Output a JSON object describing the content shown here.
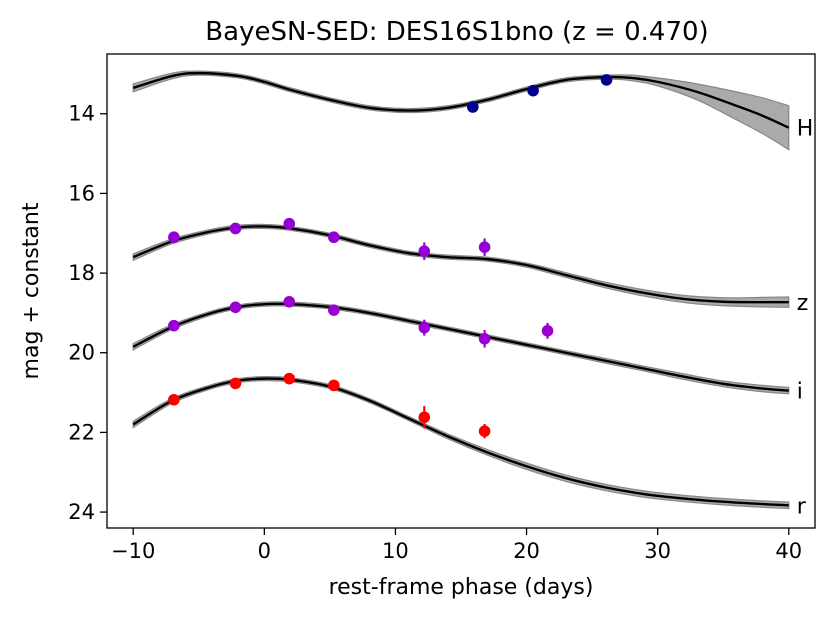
{
  "chart_data": {
    "type": "line",
    "title": "BayeSN-SED: DES16S1bno (z = 0.470)",
    "xlabel": "rest-frame phase (days)",
    "ylabel": "mag + constant",
    "xlim": [
      -12,
      42
    ],
    "ylim": [
      24.4,
      12.5
    ],
    "y_inverted": true,
    "xticks": [
      -10,
      0,
      10,
      20,
      30,
      40
    ],
    "xtick_labels": [
      "−10",
      "0",
      "10",
      "20",
      "30",
      "40"
    ],
    "yticks": [
      14,
      16,
      18,
      20,
      22,
      24
    ],
    "ytick_labels": [
      "14",
      "16",
      "18",
      "20",
      "22",
      "24"
    ],
    "grid": false,
    "colors": {
      "model": "#000000",
      "band_fill": "#aaaaaa",
      "band_edge": "#888888"
    },
    "series": [
      {
        "name": "H",
        "color": "#00008b",
        "model_x": [
          -10,
          -7,
          -5,
          -2,
          0,
          2,
          5,
          8,
          11,
          14,
          17,
          20,
          23,
          26,
          28,
          30,
          33,
          36,
          38,
          40
        ],
        "model_y": [
          13.35,
          13.05,
          12.98,
          13.05,
          13.2,
          13.4,
          13.65,
          13.85,
          13.92,
          13.85,
          13.65,
          13.38,
          13.15,
          13.08,
          13.1,
          13.2,
          13.45,
          13.8,
          14.05,
          14.35
        ],
        "model_err": [
          0.1,
          0.07,
          0.05,
          0.05,
          0.05,
          0.05,
          0.05,
          0.05,
          0.05,
          0.05,
          0.05,
          0.05,
          0.05,
          0.05,
          0.07,
          0.1,
          0.2,
          0.35,
          0.45,
          0.55
        ],
        "points": [
          {
            "x": 15.9,
            "y": 13.83,
            "err": 0.05
          },
          {
            "x": 20.5,
            "y": 13.42,
            "err": 0.05
          },
          {
            "x": 26.1,
            "y": 13.15,
            "err": 0.05
          }
        ]
      },
      {
        "name": "z",
        "color": "#9400d3",
        "model_x": [
          -10,
          -7,
          -4,
          -2,
          0,
          2,
          5,
          8,
          11,
          14,
          17,
          20,
          23,
          26,
          29,
          32,
          35,
          38,
          40
        ],
        "model_y": [
          17.6,
          17.2,
          16.95,
          16.85,
          16.83,
          16.88,
          17.05,
          17.3,
          17.5,
          17.6,
          17.65,
          17.8,
          18.05,
          18.3,
          18.5,
          18.65,
          18.72,
          18.73,
          18.73
        ],
        "model_err": [
          0.08,
          0.06,
          0.05,
          0.05,
          0.05,
          0.05,
          0.05,
          0.05,
          0.05,
          0.05,
          0.05,
          0.05,
          0.06,
          0.07,
          0.08,
          0.09,
          0.1,
          0.12,
          0.13
        ],
        "points": [
          {
            "x": -6.9,
            "y": 17.1,
            "err": 0.1
          },
          {
            "x": -2.2,
            "y": 16.88,
            "err": 0.1
          },
          {
            "x": 1.9,
            "y": 16.76,
            "err": 0.1
          },
          {
            "x": 5.3,
            "y": 17.1,
            "err": 0.1
          },
          {
            "x": 12.2,
            "y": 17.45,
            "err": 0.22
          },
          {
            "x": 16.8,
            "y": 17.35,
            "err": 0.22
          }
        ]
      },
      {
        "name": "i",
        "color": "#9b00d3",
        "model_x": [
          -10,
          -7,
          -4,
          -2,
          0,
          2,
          5,
          8,
          11,
          14,
          17,
          20,
          23,
          26,
          29,
          32,
          35,
          38,
          40
        ],
        "model_y": [
          19.85,
          19.35,
          19.0,
          18.85,
          18.78,
          18.78,
          18.85,
          19.0,
          19.2,
          19.4,
          19.6,
          19.8,
          20.0,
          20.2,
          20.4,
          20.6,
          20.78,
          20.9,
          20.95
        ],
        "model_err": [
          0.08,
          0.06,
          0.05,
          0.05,
          0.05,
          0.05,
          0.05,
          0.05,
          0.05,
          0.05,
          0.05,
          0.05,
          0.05,
          0.06,
          0.06,
          0.07,
          0.07,
          0.08,
          0.08
        ],
        "points": [
          {
            "x": -6.9,
            "y": 19.32,
            "err": 0.1
          },
          {
            "x": -2.2,
            "y": 18.86,
            "err": 0.1
          },
          {
            "x": 1.9,
            "y": 18.72,
            "err": 0.1
          },
          {
            "x": 5.3,
            "y": 18.93,
            "err": 0.1
          },
          {
            "x": 12.2,
            "y": 19.37,
            "err": 0.2
          },
          {
            "x": 16.8,
            "y": 19.65,
            "err": 0.22
          },
          {
            "x": 21.6,
            "y": 19.45,
            "err": 0.2
          }
        ]
      },
      {
        "name": "r",
        "color": "#ff0000",
        "model_x": [
          -10,
          -7,
          -4,
          -2,
          0,
          2,
          5,
          8,
          11,
          14,
          17,
          20,
          23,
          26,
          29,
          32,
          35,
          38,
          40
        ],
        "model_y": [
          21.8,
          21.2,
          20.85,
          20.7,
          20.65,
          20.68,
          20.85,
          21.2,
          21.65,
          22.1,
          22.5,
          22.85,
          23.15,
          23.38,
          23.55,
          23.66,
          23.74,
          23.8,
          23.83
        ],
        "model_err": [
          0.08,
          0.06,
          0.05,
          0.05,
          0.05,
          0.05,
          0.05,
          0.05,
          0.05,
          0.06,
          0.07,
          0.08,
          0.08,
          0.08,
          0.08,
          0.08,
          0.08,
          0.08,
          0.08
        ],
        "points": [
          {
            "x": -6.9,
            "y": 21.18,
            "err": 0.1
          },
          {
            "x": -2.2,
            "y": 20.77,
            "err": 0.1
          },
          {
            "x": 1.9,
            "y": 20.65,
            "err": 0.1
          },
          {
            "x": 5.3,
            "y": 20.82,
            "err": 0.1
          },
          {
            "x": 12.2,
            "y": 21.62,
            "err": 0.28
          },
          {
            "x": 16.8,
            "y": 21.97,
            "err": 0.18
          }
        ]
      }
    ]
  }
}
